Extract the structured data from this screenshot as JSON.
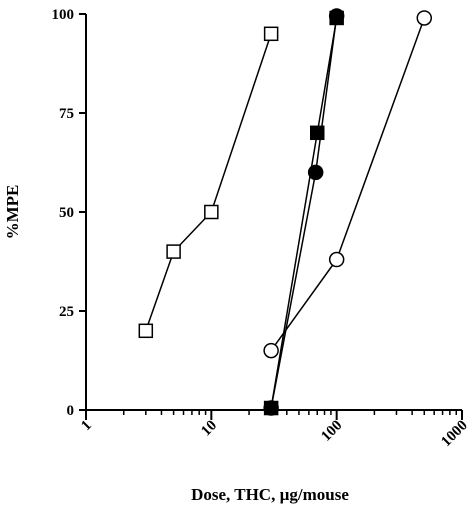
{
  "chart_data": {
    "type": "line",
    "xlabel": "Dose, THC, µg/mouse",
    "ylabel": "%MPE",
    "x_scale": "log",
    "xlim": [
      1,
      1000
    ],
    "ylim": [
      0,
      100
    ],
    "x_ticks": [
      "1",
      "10",
      "100",
      "1000"
    ],
    "y_ticks": [
      "0",
      "25",
      "50",
      "75",
      "100"
    ],
    "grid": false,
    "legend": "none",
    "series": [
      {
        "marker": "open-square",
        "color": "#000000",
        "x": [
          3,
          5,
          10,
          30
        ],
        "y": [
          20,
          40,
          50,
          95
        ]
      },
      {
        "marker": "filled-square",
        "color": "#000000",
        "x": [
          30,
          70,
          100
        ],
        "y": [
          0.5,
          70,
          99
        ]
      },
      {
        "marker": "filled-circle",
        "color": "#000000",
        "x": [
          30,
          68,
          100
        ],
        "y": [
          0.5,
          60,
          99.5
        ]
      },
      {
        "marker": "open-circle",
        "color": "#000000",
        "x": [
          30,
          100,
          500
        ],
        "y": [
          15,
          38,
          99
        ]
      }
    ]
  }
}
